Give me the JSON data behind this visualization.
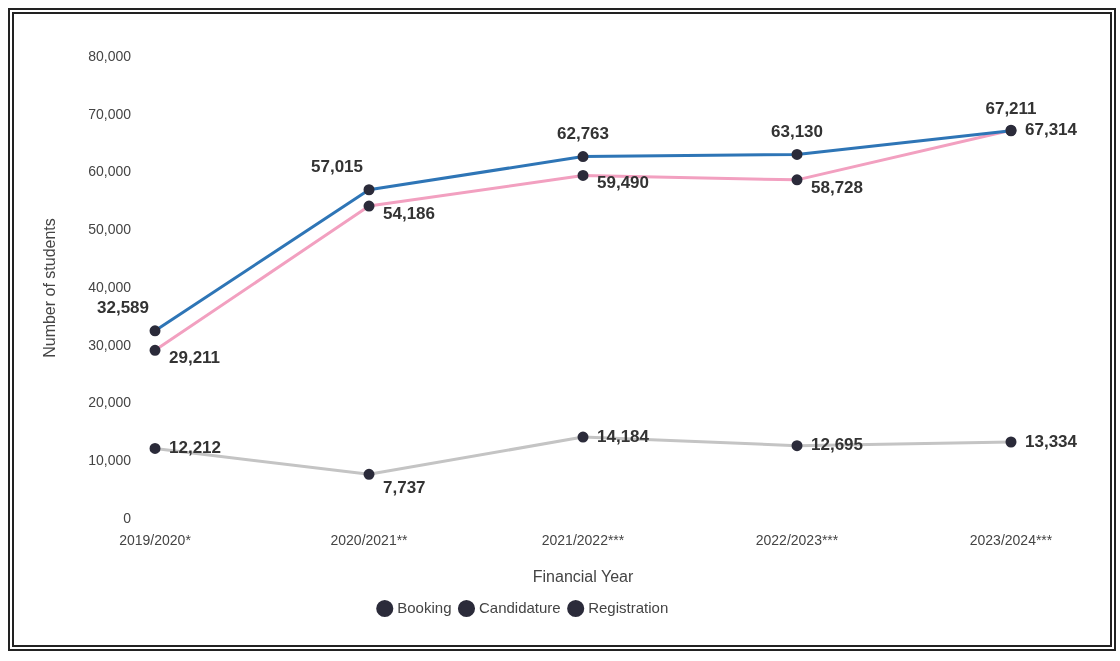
{
  "chart_data": {
    "type": "line",
    "xlabel": "Financial Year",
    "ylabel": "Number of students",
    "categories": [
      "2019/2020*",
      "2020/2021**",
      "2021/2022***",
      "2022/2023***",
      "2023/2024***"
    ],
    "series": [
      {
        "name": "Booking",
        "color": "#2e75b6",
        "values": [
          32589,
          57015,
          62763,
          63130,
          67211
        ],
        "value_labels": [
          "32,589",
          "57,015",
          "62,763",
          "63,130",
          "67,211"
        ]
      },
      {
        "name": "Candidature",
        "color": "#f2a0c0",
        "values": [
          29211,
          54186,
          59490,
          58728,
          67314
        ],
        "value_labels": [
          "29,211",
          "54,186",
          "59,490",
          "58,728",
          "67,314"
        ]
      },
      {
        "name": "Registration",
        "color": "#c4c4c4",
        "values": [
          12212,
          7737,
          14184,
          12695,
          13334
        ],
        "value_labels": [
          "12,212",
          "7,737",
          "14,184",
          "12,695",
          "13,334"
        ]
      }
    ],
    "ylim": [
      0,
      80000
    ],
    "yticks": [
      {
        "value": 0,
        "label": "0"
      },
      {
        "value": 10000,
        "label": "10,000"
      },
      {
        "value": 20000,
        "label": "20,000"
      },
      {
        "value": 30000,
        "label": "30,000"
      },
      {
        "value": 40000,
        "label": "40,000"
      },
      {
        "value": 50000,
        "label": "50,000"
      },
      {
        "value": 60000,
        "label": "60,000"
      },
      {
        "value": 70000,
        "label": "70,000"
      },
      {
        "value": 80000,
        "label": "80,000"
      }
    ],
    "grid": false,
    "legend": "bottom",
    "marker": "circle",
    "line_style": "solid"
  }
}
